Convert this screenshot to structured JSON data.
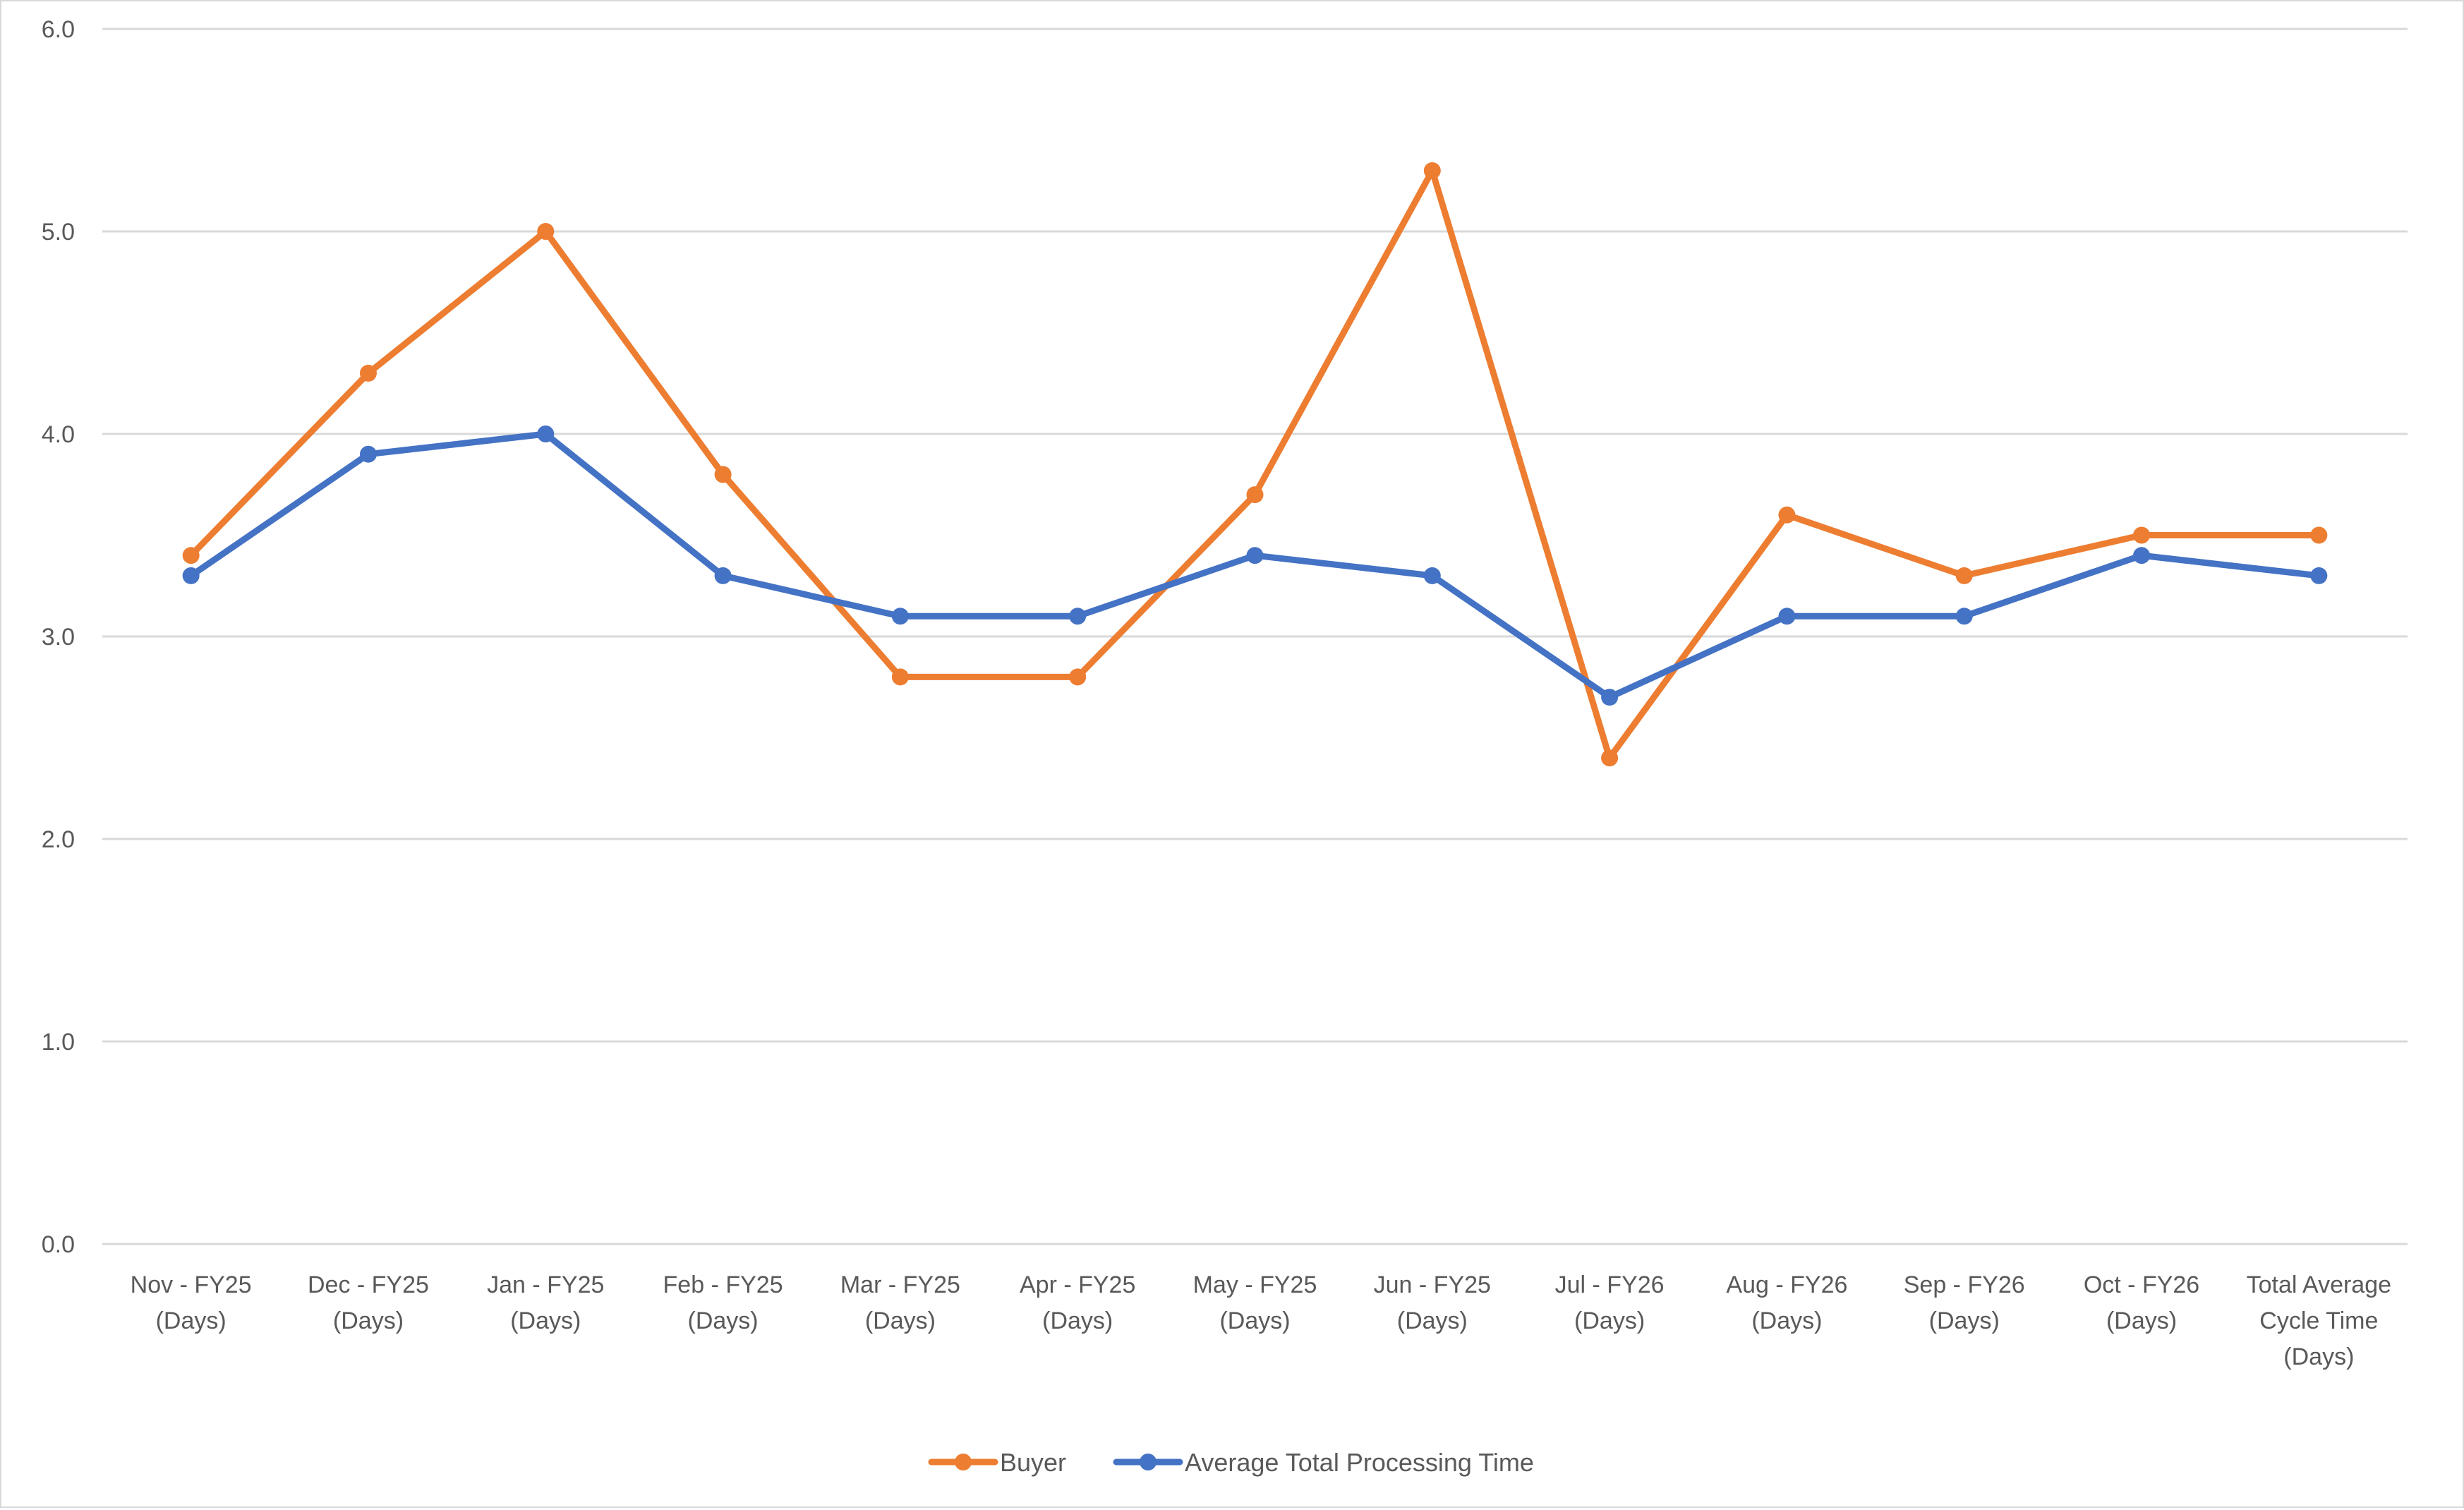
{
  "chart_data": {
    "type": "line",
    "title": "",
    "xlabel": "",
    "ylabel": "",
    "ylim": [
      0,
      6
    ],
    "yticks": [
      "0.0",
      "1.0",
      "2.0",
      "3.0",
      "4.0",
      "5.0",
      "6.0"
    ],
    "grid": true,
    "legend_position": "bottom",
    "categories": [
      "Nov - FY25 (Days)",
      "Dec - FY25 (Days)",
      "Jan - FY25 (Days)",
      "Feb - FY25 (Days)",
      "Mar - FY25 (Days)",
      "Apr - FY25 (Days)",
      "May - FY25 (Days)",
      "Jun - FY25 (Days)",
      "Jul - FY26 (Days)",
      "Aug - FY26 (Days)",
      "Sep - FY26 (Days)",
      "Oct - FY26 (Days)",
      "Total Average Cycle Time (Days)"
    ],
    "category_lines": [
      [
        "Nov - FY25",
        "(Days)"
      ],
      [
        "Dec - FY25",
        "(Days)"
      ],
      [
        "Jan - FY25",
        "(Days)"
      ],
      [
        "Feb - FY25",
        "(Days)"
      ],
      [
        "Mar - FY25",
        "(Days)"
      ],
      [
        "Apr - FY25",
        "(Days)"
      ],
      [
        "May - FY25",
        "(Days)"
      ],
      [
        "Jun - FY25",
        "(Days)"
      ],
      [
        "Jul - FY26",
        "(Days)"
      ],
      [
        "Aug - FY26",
        "(Days)"
      ],
      [
        "Sep - FY26",
        "(Days)"
      ],
      [
        "Oct - FY26",
        "(Days)"
      ],
      [
        "Total Average",
        "Cycle Time",
        "(Days)"
      ]
    ],
    "series": [
      {
        "name": "Buyer",
        "color": "#ed7d31",
        "values": [
          3.4,
          4.3,
          5.0,
          3.8,
          2.8,
          2.8,
          3.7,
          5.3,
          2.4,
          3.6,
          3.3,
          3.5,
          3.5
        ]
      },
      {
        "name": "Average Total Processing Time",
        "color": "#4472c4",
        "values": [
          3.3,
          3.9,
          4.0,
          3.3,
          3.1,
          3.1,
          3.4,
          3.3,
          2.7,
          3.1,
          3.1,
          3.4,
          3.3
        ]
      }
    ]
  },
  "legend": {
    "items": [
      {
        "label": "Buyer",
        "color": "#ed7d31"
      },
      {
        "label": "Average Total Processing Time",
        "color": "#4472c4"
      }
    ]
  },
  "style": {
    "gridline_color": "#d9d9d9",
    "label_color": "#595959",
    "border_color": "#d9d9d9"
  }
}
